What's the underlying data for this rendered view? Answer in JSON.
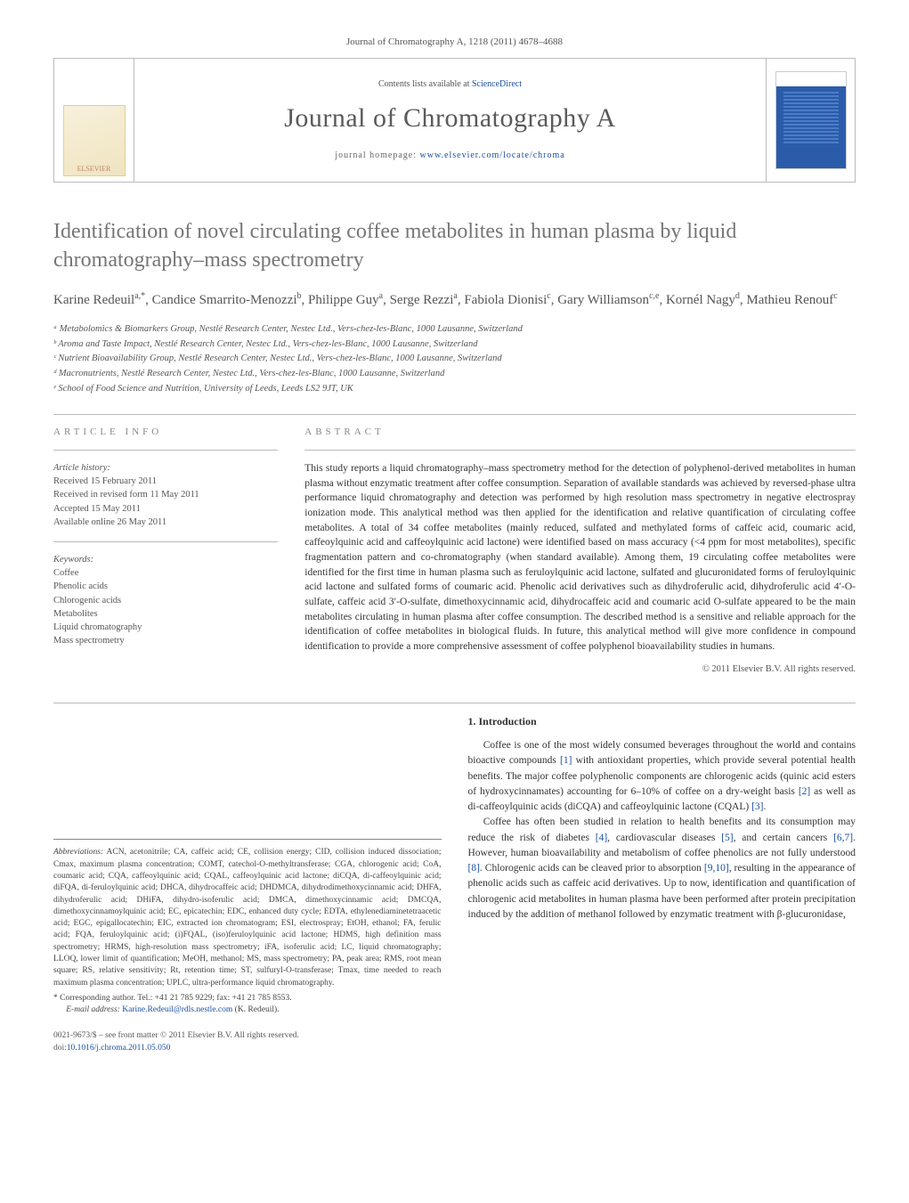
{
  "journal_ref": "Journal of Chromatography A, 1218 (2011) 4678–4688",
  "header": {
    "publisher_logo_text": "ELSEVIER",
    "contents_prefix": "Contents lists available at ",
    "contents_link": "ScienceDirect",
    "journal_name": "Journal of Chromatography A",
    "homepage_prefix": "journal homepage: ",
    "homepage_link": "www.elsevier.com/locate/chroma"
  },
  "title": "Identification of novel circulating coffee metabolites in human plasma by liquid chromatography–mass spectrometry",
  "authors_html": "Karine Redeuil<sup>a,*</sup>, Candice Smarrito-Menozzi<sup>b</sup>, Philippe Guy<sup>a</sup>, Serge Rezzi<sup>a</sup>, Fabiola Dionisi<sup>c</sup>, Gary Williamson<sup>c,e</sup>, Kornél Nagy<sup>d</sup>, Mathieu Renouf<sup>c</sup>",
  "affiliations": [
    "ᵃ Metabolomics & Biomarkers Group, Nestlé Research Center, Nestec Ltd., Vers-chez-les-Blanc, 1000 Lausanne, Switzerland",
    "ᵇ Aroma and Taste Impact, Nestlé Research Center, Nestec Ltd., Vers-chez-les-Blanc, 1000 Lausanne, Switzerland",
    "ᶜ Nutrient Bioavailability Group, Nestlé Research Center, Nestec Ltd., Vers-chez-les-Blanc, 1000 Lausanne, Switzerland",
    "ᵈ Macronutrients, Nestlé Research Center, Nestec Ltd., Vers-chez-les-Blanc, 1000 Lausanne, Switzerland",
    "ᵉ School of Food Science and Nutrition, University of Leeds, Leeds LS2 9JT, UK"
  ],
  "article_info": {
    "heading": "article info",
    "history_label": "Article history:",
    "history": [
      "Received 15 February 2011",
      "Received in revised form 11 May 2011",
      "Accepted 15 May 2011",
      "Available online 26 May 2011"
    ],
    "keywords_label": "Keywords:",
    "keywords": [
      "Coffee",
      "Phenolic acids",
      "Chlorogenic acids",
      "Metabolites",
      "Liquid chromatography",
      "Mass spectrometry"
    ]
  },
  "abstract": {
    "heading": "abstract",
    "text": "This study reports a liquid chromatography–mass spectrometry method for the detection of polyphenol-derived metabolites in human plasma without enzymatic treatment after coffee consumption. Separation of available standards was achieved by reversed-phase ultra performance liquid chromatography and detection was performed by high resolution mass spectrometry in negative electrospray ionization mode. This analytical method was then applied for the identification and relative quantification of circulating coffee metabolites. A total of 34 coffee metabolites (mainly reduced, sulfated and methylated forms of caffeic acid, coumaric acid, caffeoylquinic acid and caffeoylquinic acid lactone) were identified based on mass accuracy (<4 ppm for most metabolites), specific fragmentation pattern and co-chromatography (when standard available). Among them, 19 circulating coffee metabolites were identified for the first time in human plasma such as feruloylquinic acid lactone, sulfated and glucuronidated forms of feruloylquinic acid lactone and sulfated forms of coumaric acid. Phenolic acid derivatives such as dihydroferulic acid, dihydroferulic acid 4′-O-sulfate, caffeic acid 3′-O-sulfate, dimethoxycinnamic acid, dihydrocaffeic acid and coumaric acid O-sulfate appeared to be the main metabolites circulating in human plasma after coffee consumption. The described method is a sensitive and reliable approach for the identification of coffee metabolites in biological fluids. In future, this analytical method will give more confidence in compound identification to provide a more comprehensive assessment of coffee polyphenol bioavailability studies in humans.",
    "copyright": "© 2011 Elsevier B.V. All rights reserved."
  },
  "footnotes": {
    "abbr_label": "Abbreviations:",
    "abbr_text": " ACN, acetonitrile; CA, caffeic acid; CE, collision energy; CID, collision induced dissociation; Cmax, maximum plasma concentration; COMT, catechol-O-methyltransferase; CGA, chlorogenic acid; CoA, coumaric acid; CQA, caffeoylquinic acid; CQAL, caffeoylquinic acid lactone; diCQA, di-caffeoylquinic acid; diFQA, di-feruloylquinic acid; DHCA, dihydrocaffeic acid; DHDMCA, dihydrodimethoxycinnamic acid; DHFA, dihydroferulic acid; DHiFA, dihydro-isoferulic acid; DMCA, dimethoxycinnamic acid; DMCQA, dimethoxycinnamoylquinic acid; EC, epicatechin; EDC, enhanced duty cycle; EDTA, ethylenediaminetetraacetic acid; EGC, epigallocatechin; EIC, extracted ion chromatogram; ESI, electrospray; EtOH, ethanol; FA, ferulic acid; FQA, feruloylquinic acid; (i)FQAL, (iso)feruloylquinic acid lactone; HDMS, high definition mass spectrometry; HRMS, high-resolution mass spectrometry; iFA, isoferulic acid; LC, liquid chromatography; LLOQ, lower limit of quantification; MeOH, methanol; MS, mass spectrometry; PA, peak area; RMS, root mean square; RS, relative sensitivity; Rt, retention time; ST, sulfuryl-O-transferase; Tmax, time needed to reach maximum plasma concentration; UPLC, ultra-performance liquid chromatography.",
    "corr_label": "* Corresponding author. Tel.: +41 21 785 9229; fax: +41 21 785 8553.",
    "email_label": "E-mail address: ",
    "email": "Karine.Redeuil@rdls.nestle.com",
    "email_suffix": " (K. Redeuil)."
  },
  "intro": {
    "heading": "1. Introduction",
    "p1_pre": "Coffee is one of the most widely consumed beverages throughout the world and contains bioactive compounds ",
    "ref1": "[1]",
    "p1_mid": " with antioxidant properties, which provide several potential health benefits. The major coffee polyphenolic components are chlorogenic acids (quinic acid esters of hydroxycinnamates) accounting for 6–10% of coffee on a dry-weight basis ",
    "ref2": "[2]",
    "p1_post": " as well as di-caffeoylquinic acids (diCQA) and caffeoylquinic lactone (CQAL) ",
    "ref3": "[3]",
    "p1_end": ".",
    "p2_pre": "Coffee has often been studied in relation to health benefits and its consumption may reduce the risk of diabetes ",
    "ref4": "[4]",
    "p2_a": ", cardiovascular diseases ",
    "ref5": "[5]",
    "p2_b": ", and certain cancers ",
    "ref67": "[6,7]",
    "p2_c": ". However, human bioavailability and metabolism of coffee phenolics are not fully understood ",
    "ref8": "[8]",
    "p2_d": ". Chlorogenic acids can be cleaved prior to absorption ",
    "ref910": "[9,10]",
    "p2_e": ", resulting in the appearance of phenolic acids such as caffeic acid derivatives. Up to now, identification and quantification of chlorogenic acid metabolites in human plasma have been performed after protein precipitation induced by the addition of methanol followed by enzymatic treatment with β-glucuronidase,"
  },
  "bottom": {
    "issn_line": "0021-9673/$ – see front matter © 2011 Elsevier B.V. All rights reserved.",
    "doi_label": "doi:",
    "doi": "10.1016/j.chroma.2011.05.050"
  }
}
